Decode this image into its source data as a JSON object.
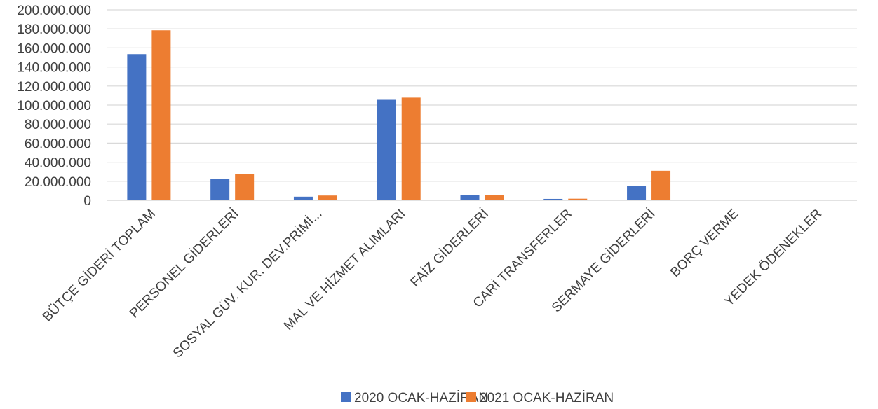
{
  "chart_data": {
    "type": "bar",
    "title": "",
    "xlabel": "",
    "ylabel": "",
    "ylim": [
      0,
      200000000
    ],
    "yticks": [
      0,
      20000000,
      40000000,
      60000000,
      80000000,
      100000000,
      120000000,
      140000000,
      160000000,
      180000000,
      200000000
    ],
    "ytick_labels": [
      "0",
      "20.000.000",
      "40.000.000",
      "60.000.000",
      "80.000.000",
      "100.000.000",
      "120.000.000",
      "140.000.000",
      "160.000.000",
      "180.000.000",
      "200.000.000"
    ],
    "grid": true,
    "legend_position": "bottom",
    "categories": [
      "BÜTÇE GİDERİ TOPLAM",
      "PERSONEL GİDERLERİ",
      "SOSYAL GÜV. KUR. DEV.PRİMİ...",
      "MAL VE HİZMET ALIMLARI",
      "FAİZ GİDERLERİ",
      "CARİ TRANSFERLER",
      "SERMAYE GİDERLERİ",
      "BORÇ VERME",
      "YEDEK ÖDENEKLER"
    ],
    "series": [
      {
        "name": "2020 OCAK-HAZİRAN",
        "color": "#4472C4",
        "values": [
          153500000,
          22500000,
          3800000,
          105500000,
          5200000,
          1500000,
          14800000,
          0,
          0
        ]
      },
      {
        "name": "2021 OCAK-HAZİRAN",
        "color": "#ED7D31",
        "values": [
          178500000,
          27500000,
          5000000,
          107800000,
          5800000,
          1700000,
          31000000,
          0,
          0
        ]
      }
    ]
  }
}
